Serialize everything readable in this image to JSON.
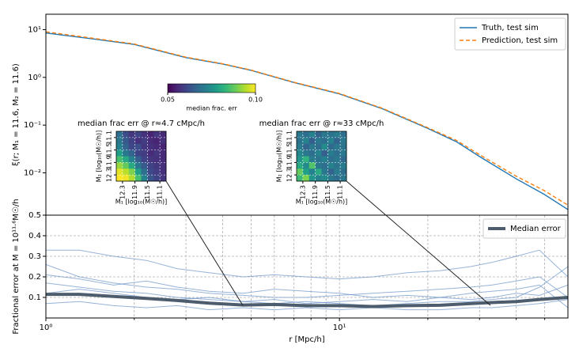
{
  "chart_data": [
    {
      "type": "line",
      "log_x": true,
      "log_y": true,
      "ylabel": "ξ(r; M₁ = 11.6, M₂ = 11.6)",
      "x": [
        1,
        1.5,
        2,
        3,
        4,
        5,
        7,
        10,
        14,
        20,
        25,
        30,
        40,
        50,
        60
      ],
      "xlim": [
        1,
        60
      ],
      "ylim": [
        0.0013,
        21
      ],
      "yticks": [
        {
          "value": 10,
          "label": "10¹"
        },
        {
          "value": 1,
          "label": "10⁰"
        },
        {
          "value": 0.1,
          "label": "10⁻¹"
        },
        {
          "value": 0.01,
          "label": "10⁻²"
        }
      ],
      "legend": "upper right",
      "series": [
        {
          "name": "Truth, test sim",
          "color": "#1f77b4",
          "dash": false,
          "values": [
            8.5,
            6.2,
            4.9,
            2.6,
            1.9,
            1.4,
            0.78,
            0.45,
            0.22,
            0.085,
            0.045,
            0.022,
            0.0075,
            0.0035,
            0.0017
          ]
        },
        {
          "name": "Prediction, test sim",
          "color": "#ff7f0e",
          "dash": true,
          "values": [
            9.0,
            6.4,
            5.0,
            2.65,
            1.93,
            1.42,
            0.79,
            0.46,
            0.225,
            0.088,
            0.048,
            0.024,
            0.0085,
            0.0042,
            0.0021
          ]
        }
      ]
    },
    {
      "type": "line",
      "log_x": true,
      "xlabel": "r [Mpc/h]",
      "ylabel": "Fractional error at M = 10¹¹·⁶M☉/h",
      "x": [
        1,
        1.3,
        1.7,
        2.2,
        2.8,
        3.6,
        4.7,
        6,
        7.7,
        10,
        13,
        17,
        22,
        28,
        33,
        40,
        48,
        60
      ],
      "xlim": [
        1,
        60
      ],
      "ylim": [
        0,
        0.5
      ],
      "xticks": [
        {
          "value": 1,
          "label": "10⁰"
        },
        {
          "value": 10,
          "label": "10¹"
        }
      ],
      "xminor_ticks": [
        2,
        3,
        4,
        5,
        6,
        7,
        8,
        9,
        20,
        30,
        40,
        50
      ],
      "yticks": [
        0.1,
        0.2,
        0.3,
        0.4,
        0.5
      ],
      "grid": true,
      "legend": "upper right",
      "series": [
        {
          "color": "#6a93c8",
          "values": [
            0.33,
            0.33,
            0.3,
            0.28,
            0.24,
            0.22,
            0.2,
            0.21,
            0.2,
            0.19,
            0.2,
            0.22,
            0.23,
            0.25,
            0.27,
            0.3,
            0.33,
            0.2
          ]
        },
        {
          "color": "#6a93c8",
          "values": [
            0.26,
            0.2,
            0.17,
            0.15,
            0.14,
            0.12,
            0.11,
            0.1,
            0.1,
            0.11,
            0.12,
            0.13,
            0.14,
            0.15,
            0.16,
            0.18,
            0.2,
            0.1
          ]
        },
        {
          "color": "#6a93c8",
          "values": [
            0.17,
            0.15,
            0.13,
            0.12,
            0.1,
            0.09,
            0.08,
            0.07,
            0.08,
            0.07,
            0.06,
            0.07,
            0.08,
            0.08,
            0.09,
            0.1,
            0.15,
            0.25
          ]
        },
        {
          "color": "#6a93c8",
          "values": [
            0.07,
            0.08,
            0.06,
            0.05,
            0.06,
            0.04,
            0.05,
            0.04,
            0.05,
            0.04,
            0.05,
            0.04,
            0.04,
            0.05,
            0.05,
            0.06,
            0.07,
            0.09
          ]
        },
        {
          "color": "#6a93c8",
          "values": [
            0.21,
            0.19,
            0.16,
            0.18,
            0.15,
            0.13,
            0.12,
            0.14,
            0.13,
            0.12,
            0.1,
            0.11,
            0.1,
            0.12,
            0.13,
            0.14,
            0.16,
            0.05
          ]
        },
        {
          "color": "#6a93c8",
          "values": [
            0.12,
            0.14,
            0.12,
            0.1,
            0.09,
            0.1,
            0.08,
            0.09,
            0.07,
            0.08,
            0.09,
            0.08,
            0.1,
            0.09,
            0.1,
            0.12,
            0.11,
            0.16
          ]
        },
        {
          "name": "Median error",
          "color": "#4d5d6e",
          "width": 4,
          "values": [
            0.115,
            0.115,
            0.105,
            0.095,
            0.085,
            0.072,
            0.063,
            0.066,
            0.06,
            0.06,
            0.056,
            0.06,
            0.062,
            0.07,
            0.075,
            0.08,
            0.09,
            0.1
          ]
        }
      ]
    },
    {
      "type": "heatmap",
      "title": "median frac err @ r≈4.7  cMpc/h",
      "xlabel": "M₁ [log₁₀(M☉/h)]",
      "ylabel": "M₂ [log₁₀(M☉/h)]",
      "xlim": [
        12.5,
        10.9
      ],
      "ylim": [
        10.9,
        12.5
      ],
      "xticks": [
        12.3,
        11.9,
        11.5,
        11.1
      ],
      "yticks": [
        11.1,
        11.5,
        11.9,
        12.3
      ],
      "z": [
        [
          0.068,
          0.062,
          0.058,
          0.06,
          0.057,
          0.055,
          0.058,
          0.056
        ],
        [
          0.07,
          0.064,
          0.06,
          0.057,
          0.059,
          0.056,
          0.055,
          0.057
        ],
        [
          0.072,
          0.066,
          0.061,
          0.062,
          0.058,
          0.057,
          0.056,
          0.055
        ],
        [
          0.078,
          0.07,
          0.066,
          0.06,
          0.059,
          0.056,
          0.058,
          0.056
        ],
        [
          0.085,
          0.08,
          0.072,
          0.065,
          0.06,
          0.058,
          0.057,
          0.056
        ],
        [
          0.092,
          0.088,
          0.08,
          0.07,
          0.064,
          0.06,
          0.058,
          0.057
        ],
        [
          0.098,
          0.095,
          0.09,
          0.078,
          0.068,
          0.061,
          0.059,
          0.057
        ],
        [
          0.1,
          0.099,
          0.094,
          0.085,
          0.072,
          0.063,
          0.06,
          0.058
        ]
      ],
      "colorbar": {
        "label": "median frac. err",
        "lim": [
          0.05,
          0.1
        ],
        "ticks": [
          0.05,
          {
            "value": 0.1,
            "label": "0.10"
          }
        ]
      }
    },
    {
      "type": "heatmap",
      "title": "median frac err @ r≈33  cMpc/h",
      "xlabel": "M₁ [log₁₀(M☉/h)]",
      "ylabel": "M₂ [log₁₀(M☉/h)]",
      "xlim": [
        12.5,
        10.9
      ],
      "ylim": [
        10.9,
        12.5
      ],
      "xticks": [
        12.3,
        11.9,
        11.5,
        11.1
      ],
      "yticks": [
        11.1,
        11.5,
        11.9,
        12.3
      ],
      "z": [
        [
          0.07,
          0.068,
          0.072,
          0.066,
          0.07,
          0.069,
          0.071,
          0.068
        ],
        [
          0.069,
          0.072,
          0.065,
          0.07,
          0.068,
          0.072,
          0.066,
          0.07
        ],
        [
          0.071,
          0.066,
          0.07,
          0.068,
          0.074,
          0.067,
          0.07,
          0.069
        ],
        [
          0.073,
          0.07,
          0.068,
          0.072,
          0.065,
          0.071,
          0.068,
          0.07
        ],
        [
          0.076,
          0.082,
          0.071,
          0.069,
          0.072,
          0.068,
          0.07,
          0.067
        ],
        [
          0.08,
          0.074,
          0.086,
          0.07,
          0.068,
          0.072,
          0.069,
          0.071
        ],
        [
          0.088,
          0.078,
          0.072,
          0.08,
          0.07,
          0.066,
          0.071,
          0.068
        ],
        [
          0.084,
          0.09,
          0.076,
          0.072,
          0.074,
          0.07,
          0.068,
          0.07
        ]
      ]
    }
  ]
}
